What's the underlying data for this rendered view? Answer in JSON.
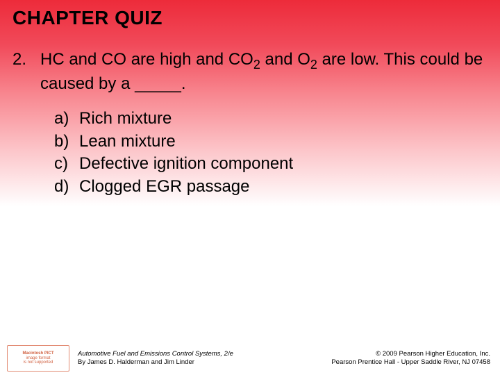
{
  "title": "CHAPTER QUIZ",
  "question": {
    "number": "2.",
    "text_html": "HC and CO are high and CO<sub>2</sub> and O<sub>2</sub> are low. This could be caused by a _____."
  },
  "options": [
    {
      "label": "a)",
      "text": "Rich mixture"
    },
    {
      "label": "b)",
      "text": "Lean mixture"
    },
    {
      "label": "c)",
      "text": "Defective ignition component"
    },
    {
      "label": "d)",
      "text": "Clogged EGR passage"
    }
  ],
  "badge": {
    "line1": "Macintosh PICT",
    "line2": "image format",
    "line3": "is not supported"
  },
  "footer_left": {
    "line1": "Automotive Fuel and Emissions Control Systems, 2/e",
    "line2": "By James D. Halderman and Jim Linder"
  },
  "footer_right": {
    "line1": "© 2009 Pearson Higher Education, Inc.",
    "line2": "Pearson Prentice Hall - Upper Saddle River, NJ 07458"
  },
  "colors": {
    "grad_top": "#ed2b3a",
    "grad_bottom": "#ffffff",
    "badge_border": "#e28b73",
    "badge_text": "#d06040"
  }
}
